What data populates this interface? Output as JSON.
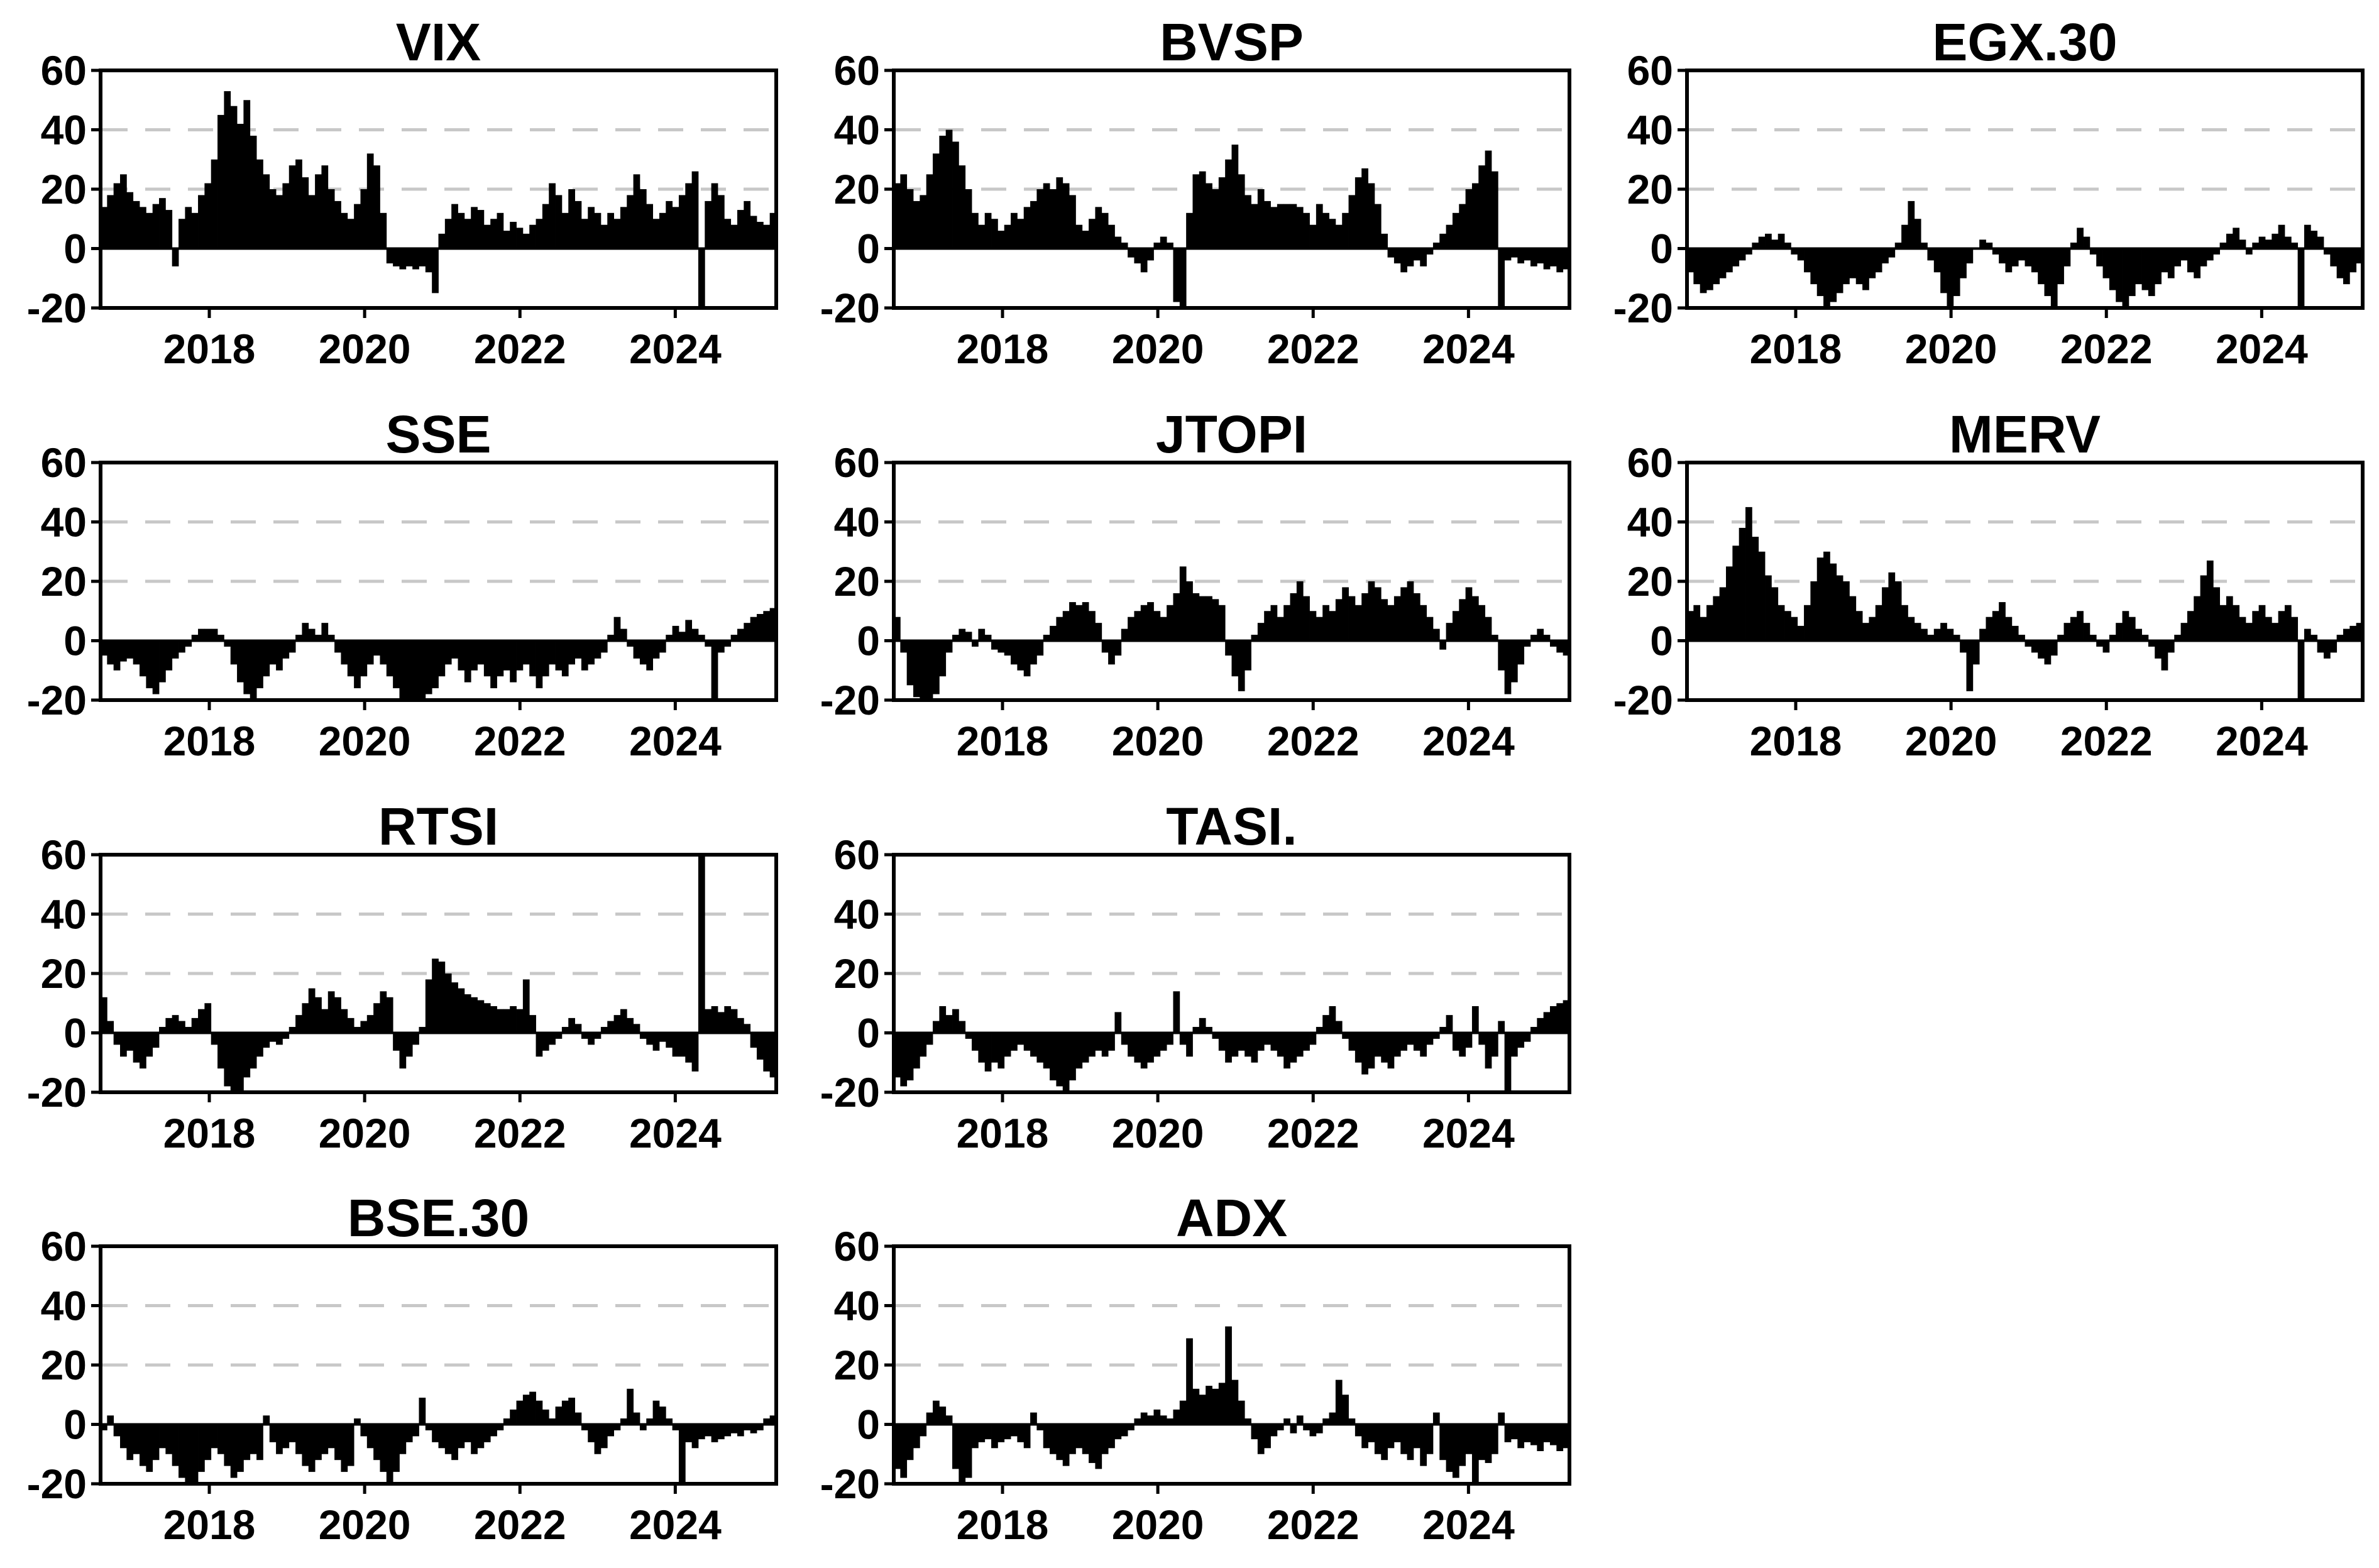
{
  "figure": {
    "background": "#ffffff",
    "ylim": [
      -20,
      60
    ],
    "xlim": [
      2016.6,
      2025.3
    ],
    "y_ticks": [
      60,
      40,
      20,
      0,
      -20
    ],
    "x_ticks": [
      2018,
      2020,
      2022,
      2024
    ],
    "grid_lines": [
      40,
      20
    ],
    "grid_style": "dashed",
    "legend": "none",
    "colors": {
      "bar": "#000000",
      "axis": "#000000",
      "text": "#000000",
      "grid": "#c8c8c8",
      "background": "#ffffff"
    }
  },
  "chart_data": [
    {
      "type": "bar",
      "title": "VIX",
      "row": 0,
      "col": 0,
      "x_start": 2016.6,
      "x_step": 0.08333,
      "values": [
        14,
        18,
        22,
        25,
        19,
        16,
        14,
        12,
        15,
        17,
        13,
        -6,
        10,
        14,
        12,
        18,
        22,
        30,
        45,
        53,
        48,
        42,
        50,
        38,
        30,
        25,
        20,
        18,
        22,
        28,
        30,
        24,
        18,
        25,
        28,
        20,
        16,
        12,
        10,
        15,
        20,
        32,
        28,
        12,
        -5,
        -6,
        -7,
        -6,
        -7,
        -6,
        -8,
        -15,
        5,
        10,
        15,
        12,
        10,
        14,
        13,
        8,
        10,
        12,
        6,
        9,
        7,
        5,
        8,
        10,
        15,
        22,
        18,
        12,
        20,
        16,
        10,
        14,
        12,
        8,
        12,
        10,
        14,
        18,
        25,
        20,
        15,
        10,
        12,
        16,
        14,
        18,
        22,
        26,
        -22,
        16,
        22,
        18,
        10,
        8,
        13,
        16,
        11,
        9,
        8,
        12
      ]
    },
    {
      "type": "bar",
      "title": "BVSP",
      "row": 0,
      "col": 1,
      "x_start": 2016.6,
      "x_step": 0.08333,
      "values": [
        22,
        25,
        20,
        16,
        18,
        25,
        32,
        38,
        40,
        36,
        28,
        20,
        12,
        8,
        12,
        10,
        6,
        8,
        12,
        10,
        14,
        16,
        20,
        22,
        20,
        24,
        22,
        18,
        8,
        6,
        10,
        14,
        12,
        8,
        4,
        2,
        -3,
        -5,
        -8,
        -4,
        2,
        4,
        2,
        -18,
        -21,
        12,
        25,
        26,
        22,
        20,
        24,
        30,
        35,
        25,
        18,
        15,
        20,
        16,
        14,
        15,
        15,
        15,
        14,
        12,
        8,
        15,
        12,
        10,
        8,
        12,
        18,
        24,
        27,
        22,
        15,
        5,
        -3,
        -5,
        -8,
        -6,
        -4,
        -6,
        -2,
        2,
        5,
        8,
        12,
        15,
        20,
        22,
        28,
        33,
        26,
        -20,
        -4,
        -3,
        -5,
        -4,
        -6,
        -5,
        -7,
        -6,
        -8,
        -7
      ]
    },
    {
      "type": "bar",
      "title": "EGX.30",
      "row": 0,
      "col": 2,
      "x_start": 2016.6,
      "x_step": 0.08333,
      "values": [
        -8,
        -12,
        -15,
        -14,
        -12,
        -10,
        -8,
        -6,
        -4,
        -2,
        2,
        4,
        5,
        3,
        5,
        2,
        -2,
        -4,
        -8,
        -12,
        -16,
        -20,
        -18,
        -15,
        -12,
        -10,
        -12,
        -14,
        -10,
        -8,
        -5,
        -3,
        2,
        8,
        16,
        10,
        2,
        -4,
        -8,
        -15,
        -20,
        -16,
        -10,
        -5,
        0,
        3,
        2,
        -2,
        -5,
        -8,
        -6,
        -4,
        -6,
        -8,
        -12,
        -16,
        -20,
        -12,
        -6,
        2,
        7,
        4,
        -2,
        -6,
        -10,
        -14,
        -18,
        -20,
        -16,
        -12,
        -14,
        -16,
        -12,
        -8,
        -10,
        -6,
        -4,
        -8,
        -10,
        -6,
        -4,
        -2,
        2,
        5,
        7,
        3,
        -2,
        2,
        4,
        3,
        5,
        8,
        4,
        2,
        -22,
        8,
        6,
        4,
        -2,
        -6,
        -10,
        -12,
        -8,
        -5
      ]
    },
    {
      "type": "bar",
      "title": "SSE",
      "row": 1,
      "col": 0,
      "x_start": 2016.6,
      "x_step": 0.08333,
      "values": [
        -5,
        -8,
        -10,
        -7,
        -6,
        -8,
        -12,
        -16,
        -18,
        -14,
        -10,
        -6,
        -4,
        -2,
        2,
        4,
        4,
        4,
        2,
        -2,
        -8,
        -14,
        -18,
        -20,
        -16,
        -12,
        -8,
        -10,
        -6,
        -4,
        2,
        6,
        4,
        2,
        6,
        2,
        -4,
        -8,
        -12,
        -16,
        -12,
        -8,
        -5,
        -8,
        -12,
        -16,
        -20,
        -20,
        -20,
        -20,
        -18,
        -16,
        -12,
        -8,
        -6,
        -10,
        -14,
        -10,
        -8,
        -12,
        -16,
        -12,
        -10,
        -14,
        -10,
        -8,
        -12,
        -16,
        -12,
        -8,
        -10,
        -12,
        -8,
        -6,
        -10,
        -8,
        -6,
        -4,
        2,
        8,
        4,
        -2,
        -6,
        -8,
        -10,
        -6,
        -4,
        2,
        5,
        3,
        7,
        4,
        2,
        -2,
        -20,
        -4,
        -2,
        2,
        4,
        6,
        8,
        9,
        10,
        11
      ]
    },
    {
      "type": "bar",
      "title": "JTOPI",
      "row": 1,
      "col": 1,
      "x_start": 2016.6,
      "x_step": 0.08333,
      "values": [
        8,
        -4,
        -15,
        -19,
        -20,
        -20,
        -18,
        -12,
        -4,
        2,
        4,
        3,
        -2,
        4,
        2,
        -3,
        -4,
        -5,
        -8,
        -10,
        -12,
        -8,
        -5,
        2,
        5,
        8,
        10,
        13,
        12,
        13,
        10,
        6,
        -4,
        -8,
        -5,
        4,
        8,
        10,
        12,
        13,
        10,
        8,
        12,
        16,
        25,
        20,
        16,
        15,
        15,
        14,
        12,
        -5,
        -12,
        -17,
        -10,
        2,
        6,
        10,
        12,
        8,
        12,
        16,
        20,
        15,
        10,
        8,
        12,
        10,
        14,
        18,
        15,
        12,
        16,
        20,
        18,
        14,
        12,
        15,
        18,
        20,
        16,
        12,
        8,
        4,
        -3,
        6,
        10,
        14,
        18,
        15,
        12,
        8,
        2,
        -10,
        -18,
        -14,
        -8,
        -2,
        2,
        4,
        2,
        -2,
        -4,
        -5
      ]
    },
    {
      "type": "bar",
      "title": "MERV",
      "row": 1,
      "col": 2,
      "x_start": 2016.6,
      "x_step": 0.08333,
      "values": [
        10,
        12,
        8,
        12,
        15,
        18,
        25,
        32,
        38,
        45,
        35,
        30,
        22,
        18,
        12,
        10,
        8,
        5,
        12,
        20,
        28,
        30,
        26,
        22,
        20,
        15,
        10,
        6,
        8,
        12,
        18,
        23,
        20,
        12,
        8,
        6,
        4,
        2,
        4,
        6,
        4,
        2,
        -4,
        -17,
        -8,
        4,
        8,
        10,
        13,
        8,
        5,
        2,
        -2,
        -4,
        -6,
        -8,
        -5,
        2,
        6,
        8,
        10,
        6,
        2,
        -2,
        -4,
        2,
        6,
        10,
        8,
        4,
        2,
        -2,
        -6,
        -10,
        -4,
        2,
        6,
        10,
        15,
        22,
        27,
        18,
        12,
        15,
        12,
        8,
        6,
        10,
        12,
        8,
        6,
        10,
        12,
        8,
        -22,
        4,
        2,
        -4,
        -6,
        -4,
        2,
        4,
        5,
        6
      ]
    },
    {
      "type": "bar",
      "title": "RTSI",
      "row": 2,
      "col": 0,
      "x_start": 2016.6,
      "x_step": 0.08333,
      "values": [
        12,
        4,
        -4,
        -8,
        -6,
        -10,
        -12,
        -8,
        -5,
        2,
        5,
        6,
        4,
        2,
        5,
        8,
        10,
        -4,
        -12,
        -18,
        -21,
        -20,
        -15,
        -12,
        -8,
        -5,
        -3,
        -4,
        -2,
        2,
        6,
        10,
        15,
        12,
        8,
        14,
        12,
        8,
        5,
        2,
        4,
        6,
        10,
        14,
        12,
        -6,
        -12,
        -8,
        -4,
        2,
        18,
        25,
        24,
        20,
        17,
        15,
        13,
        12,
        11,
        10,
        9,
        8,
        8,
        9,
        8,
        18,
        6,
        -8,
        -6,
        -4,
        -2,
        2,
        5,
        3,
        -2,
        -4,
        -2,
        2,
        4,
        6,
        8,
        5,
        3,
        -2,
        -4,
        -6,
        -3,
        -5,
        -8,
        -8,
        -10,
        -13,
        70,
        8,
        9,
        7,
        9,
        8,
        5,
        3,
        -5,
        -9,
        -13,
        -15
      ]
    },
    {
      "type": "bar",
      "title": "TASI.",
      "row": 2,
      "col": 1,
      "x_start": 2016.6,
      "x_step": 0.08333,
      "values": [
        -15,
        -18,
        -16,
        -12,
        -8,
        -4,
        4,
        9,
        6,
        8,
        4,
        -2,
        -6,
        -10,
        -13,
        -10,
        -12,
        -8,
        -6,
        -4,
        -6,
        -8,
        -10,
        -12,
        -16,
        -18,
        -20,
        -16,
        -12,
        -10,
        -8,
        -6,
        -8,
        -6,
        7,
        -4,
        -8,
        -10,
        -12,
        -10,
        -8,
        -6,
        -4,
        14,
        -4,
        -8,
        2,
        5,
        2,
        -2,
        -6,
        -10,
        -8,
        -6,
        -8,
        -10,
        -6,
        -4,
        -6,
        -8,
        -12,
        -10,
        -8,
        -6,
        -4,
        2,
        6,
        9,
        4,
        -2,
        -6,
        -10,
        -14,
        -12,
        -8,
        -10,
        -12,
        -8,
        -6,
        -4,
        -6,
        -8,
        -4,
        -2,
        2,
        6,
        -6,
        -8,
        -5,
        9,
        -4,
        -12,
        -8,
        4,
        -20,
        -8,
        -5,
        -3,
        2,
        5,
        7,
        9,
        10,
        11
      ]
    },
    {
      "type": "bar",
      "title": "BSE.30",
      "row": 3,
      "col": 0,
      "x_start": 2016.6,
      "x_step": 0.08333,
      "values": [
        -2,
        3,
        -4,
        -8,
        -12,
        -10,
        -14,
        -16,
        -12,
        -8,
        -10,
        -14,
        -18,
        -20,
        -20,
        -16,
        -12,
        -8,
        -10,
        -14,
        -18,
        -16,
        -12,
        -10,
        -12,
        3,
        -6,
        -10,
        -8,
        -6,
        -10,
        -14,
        -16,
        -12,
        -10,
        -8,
        -12,
        -16,
        -14,
        2,
        -4,
        -8,
        -12,
        -16,
        -20,
        -16,
        -10,
        -6,
        -4,
        9,
        -2,
        -6,
        -8,
        -10,
        -12,
        -8,
        -6,
        -10,
        -8,
        -6,
        -4,
        -2,
        2,
        5,
        8,
        10,
        11,
        8,
        5,
        2,
        6,
        8,
        9,
        4,
        -2,
        -6,
        -10,
        -8,
        -4,
        -2,
        2,
        12,
        4,
        -2,
        2,
        8,
        6,
        2,
        -2,
        -20,
        -6,
        -8,
        -5,
        -4,
        -6,
        -5,
        -4,
        -3,
        -4,
        -2,
        -3,
        -2,
        2,
        3
      ]
    },
    {
      "type": "bar",
      "title": "ADX",
      "row": 3,
      "col": 1,
      "x_start": 2016.6,
      "x_step": 0.08333,
      "values": [
        -15,
        -18,
        -12,
        -8,
        -4,
        4,
        8,
        6,
        3,
        -15,
        -20,
        -18,
        -8,
        -6,
        -5,
        -8,
        -6,
        -5,
        -4,
        -6,
        -8,
        4,
        -2,
        -8,
        -10,
        -12,
        -14,
        -10,
        -8,
        -10,
        -13,
        -15,
        -10,
        -8,
        -5,
        -4,
        -2,
        2,
        4,
        3,
        5,
        3,
        2,
        5,
        8,
        29,
        12,
        10,
        13,
        12,
        14,
        33,
        15,
        8,
        2,
        -5,
        -10,
        -8,
        -4,
        -2,
        2,
        -3,
        3,
        -2,
        -4,
        -3,
        2,
        4,
        15,
        10,
        2,
        -4,
        -8,
        -6,
        -10,
        -12,
        -8,
        -6,
        -10,
        -12,
        -8,
        -14,
        -10,
        4,
        -12,
        -16,
        -18,
        -14,
        -10,
        -21,
        -12,
        -13,
        -10,
        4,
        -6,
        -5,
        -8,
        -6,
        -7,
        -9,
        -6,
        -7,
        -9,
        -8
      ]
    }
  ]
}
